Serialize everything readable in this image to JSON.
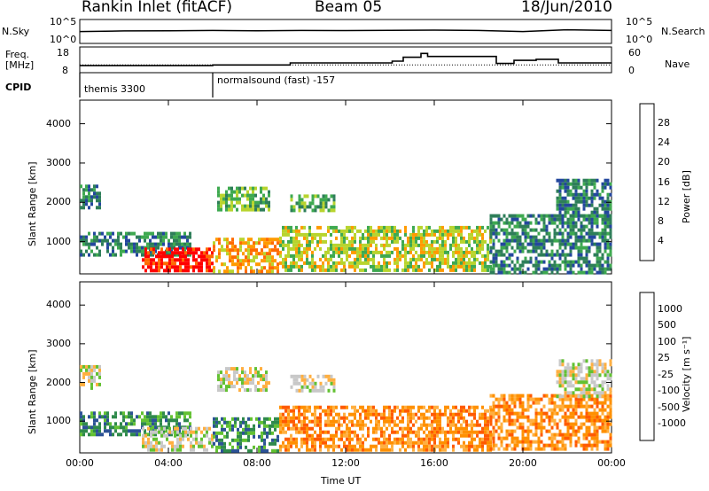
{
  "header": {
    "station": "Rankin Inlet (fitACF)",
    "beam": "Beam 05",
    "date": "18/Jun/2010"
  },
  "side_labels": {
    "nsky": "N.Sky",
    "nsky_ticks": [
      "10^5",
      "10^0"
    ],
    "nsearch": "N.Search",
    "nsearch_ticks": [
      "10^5",
      "10^0"
    ],
    "freq_line1": "Freq.",
    "freq_line2": "[MHz]",
    "freq_ticks": [
      "18",
      "8"
    ],
    "nave": "Nave",
    "nave_ticks": [
      "60",
      "0"
    ],
    "cpid": "CPID"
  },
  "cpid_segments": [
    {
      "label": "themis 3300",
      "start_hour": 0
    },
    {
      "label": "normalsound (fast) -157",
      "start_hour": 6
    }
  ],
  "colors": {
    "power": [
      "#0000ff",
      "#23479d",
      "#2e7e59",
      "#3ea950",
      "#b8d42e",
      "#ff9a00",
      "#ff6a00",
      "#ff0000"
    ],
    "velocity": [
      "#ff0000",
      "#ff5a00",
      "#ff9000",
      "#ffaf40",
      "#c8c8c8",
      "#62c132",
      "#2f8a4b",
      "#2c5296",
      "#2020c8"
    ]
  },
  "chart_data": [
    {
      "type": "line",
      "panel": "sky-search-noise",
      "ylabel_left": "N.Sky",
      "ylabel_right": "N.Search",
      "y_scale": "log",
      "ylim": [
        1,
        100000
      ],
      "x": [
        0,
        2,
        4,
        6,
        8,
        10,
        12,
        14,
        16,
        18,
        20,
        22,
        24
      ],
      "series": [
        {
          "name": "N.Sky",
          "values": [
            300,
            400,
            450,
            500,
            420,
            500,
            480,
            520,
            600,
            500,
            300,
            700,
            500
          ]
        }
      ]
    },
    {
      "type": "line",
      "panel": "frequency-nave",
      "ylabel_left": "Freq. [MHz]",
      "ylabel_right": "Nave",
      "ylim_left": [
        8,
        18
      ],
      "ylim_right": [
        0,
        60
      ],
      "x": [
        0,
        6,
        9.2,
        9.5,
        14.1,
        14.6,
        15.4,
        15.7,
        18.8,
        19.6,
        20.6,
        21.6,
        24
      ],
      "series": [
        {
          "name": "Freq.",
          "values": [
            10.8,
            11,
            11,
            11.8,
            12.5,
            14,
            15.5,
            14.3,
            11.6,
            12.8,
            13.2,
            11.8,
            11.8
          ]
        }
      ]
    },
    {
      "type": "heatmap",
      "panel": "power",
      "xlabel": "",
      "ylabel": "Slant Range [km]",
      "xlim": [
        0,
        24
      ],
      "ylim": [
        180,
        4600
      ],
      "colorbar_label": "Power [dB]",
      "colorbar_ticks": [
        "4",
        "8",
        "12",
        "16",
        "20",
        "24",
        "28"
      ],
      "y_ticks": [
        "1000",
        "2000",
        "3000",
        "4000"
      ],
      "regions": [
        {
          "t0": 0,
          "t1": 0.9,
          "r0": 1850,
          "r1": 2450,
          "level": 2
        },
        {
          "t0": 0,
          "t1": 5,
          "r0": 650,
          "r1": 1250,
          "level": 2
        },
        {
          "t0": 2.8,
          "t1": 6,
          "r0": 250,
          "r1": 850,
          "level": 7
        },
        {
          "t0": 6.2,
          "t1": 8.5,
          "r0": 1800,
          "r1": 2400,
          "level": 3
        },
        {
          "t0": 6,
          "t1": 9,
          "r0": 200,
          "r1": 1100,
          "level": 5
        },
        {
          "t0": 9.5,
          "t1": 11.5,
          "r0": 1800,
          "r1": 2200,
          "level": 3
        },
        {
          "t0": 9,
          "t1": 18.5,
          "r0": 250,
          "r1": 1400,
          "level": 4
        },
        {
          "t0": 18.5,
          "t1": 24,
          "r0": 250,
          "r1": 1700,
          "level": 2
        },
        {
          "t0": 21.5,
          "t1": 24,
          "r0": 1600,
          "r1": 2600,
          "level": 2
        }
      ]
    },
    {
      "type": "heatmap",
      "panel": "velocity",
      "xlabel": "Time UT",
      "ylabel": "Slant Range [km]",
      "xlim": [
        0,
        24
      ],
      "ylim": [
        180,
        4600
      ],
      "x_ticks": [
        "00:00",
        "04:00",
        "08:00",
        "12:00",
        "16:00",
        "20:00",
        "00:00"
      ],
      "y_ticks": [
        "1000",
        "2000",
        "3000",
        "4000"
      ],
      "colorbar_label": "Velocity [m s⁻¹]",
      "colorbar_ticks": [
        "-1000",
        "-500",
        "-100",
        "-25",
        "25",
        "100",
        "500",
        "1000"
      ],
      "regions": [
        {
          "t0": 0,
          "t1": 0.9,
          "r0": 1850,
          "r1": 2450,
          "level": 4
        },
        {
          "t0": 0,
          "t1": 5,
          "r0": 650,
          "r1": 1250,
          "level": 6
        },
        {
          "t0": 2.8,
          "t1": 6,
          "r0": 250,
          "r1": 850,
          "level": 4
        },
        {
          "t0": 6.2,
          "t1": 8.5,
          "r0": 1800,
          "r1": 2400,
          "level": 4
        },
        {
          "t0": 6,
          "t1": 9,
          "r0": 200,
          "r1": 1100,
          "level": 6
        },
        {
          "t0": 9.5,
          "t1": 11.5,
          "r0": 1800,
          "r1": 2200,
          "level": 4
        },
        {
          "t0": 9,
          "t1": 18.5,
          "r0": 250,
          "r1": 1400,
          "level": 2
        },
        {
          "t0": 18.5,
          "t1": 24,
          "r0": 250,
          "r1": 1700,
          "level": 2
        },
        {
          "t0": 21.5,
          "t1": 24,
          "r0": 1600,
          "r1": 2600,
          "level": 4
        }
      ]
    }
  ]
}
